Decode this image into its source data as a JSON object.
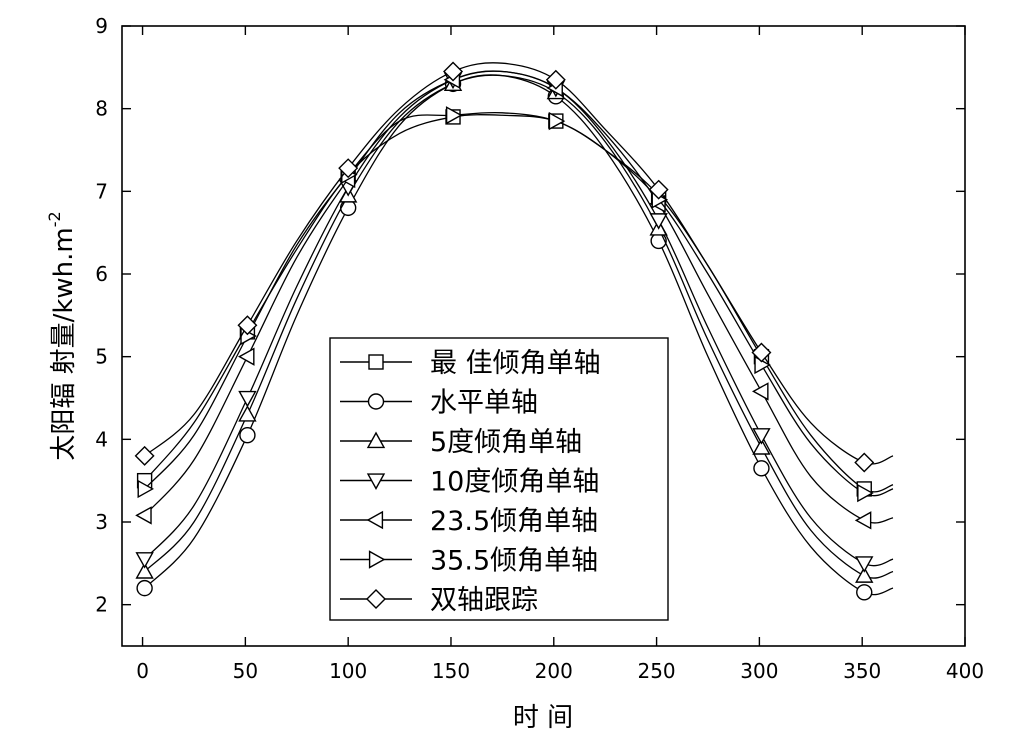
{
  "chart_data": {
    "type": "line",
    "xlabel": "时 间",
    "ylabel": "太阳辐 射量/kwh.m",
    "ylabel_sup": "-2",
    "xlim": [
      -10,
      400
    ],
    "ylim": [
      1.5,
      9
    ],
    "xticks": [
      0,
      50,
      100,
      150,
      200,
      250,
      300,
      350,
      400
    ],
    "yticks": [
      2,
      3,
      4,
      5,
      6,
      7,
      8,
      9
    ],
    "grid": false,
    "legend_position": "center-left",
    "series": [
      {
        "name": "最 佳倾角单轴",
        "marker": "square",
        "x": [
          1,
          25,
          51,
          75,
          100,
          125,
          151,
          175,
          201,
          225,
          251,
          275,
          301,
          325,
          351,
          365
        ],
        "y": [
          3.5,
          4.2,
          5.3,
          6.3,
          7.2,
          7.7,
          7.9,
          7.92,
          7.85,
          7.5,
          6.95,
          6.1,
          5.0,
          4.05,
          3.4,
          3.45
        ]
      },
      {
        "name": "水平单轴",
        "marker": "circle",
        "x": [
          1,
          25,
          51,
          75,
          100,
          125,
          151,
          175,
          201,
          225,
          251,
          275,
          301,
          325,
          351,
          365
        ],
        "y": [
          2.2,
          2.8,
          4.05,
          5.5,
          6.8,
          7.8,
          8.3,
          8.4,
          8.15,
          7.5,
          6.4,
          5.0,
          3.65,
          2.7,
          2.15,
          2.2
        ]
      },
      {
        "name": "5度倾角单轴",
        "marker": "triangle-up",
        "x": [
          1,
          25,
          51,
          75,
          100,
          125,
          151,
          175,
          201,
          225,
          251,
          275,
          301,
          325,
          351,
          365
        ],
        "y": [
          2.4,
          3.0,
          4.3,
          5.7,
          6.95,
          7.85,
          8.3,
          8.4,
          8.2,
          7.6,
          6.55,
          5.2,
          3.9,
          2.9,
          2.35,
          2.4
        ]
      },
      {
        "name": "10度倾角单轴",
        "marker": "triangle-down",
        "x": [
          1,
          25,
          51,
          75,
          100,
          125,
          151,
          175,
          201,
          225,
          251,
          275,
          301,
          325,
          351,
          365
        ],
        "y": [
          2.55,
          3.2,
          4.5,
          5.85,
          7.05,
          7.9,
          8.35,
          8.45,
          8.25,
          7.65,
          6.65,
          5.35,
          4.05,
          3.05,
          2.5,
          2.55
        ]
      },
      {
        "name": "23.5倾角单轴",
        "marker": "triangle-left",
        "x": [
          1,
          25,
          51,
          75,
          100,
          125,
          151,
          175,
          201,
          225,
          251,
          275,
          301,
          325,
          351,
          365
        ],
        "y": [
          3.08,
          3.75,
          5.0,
          6.2,
          7.15,
          7.95,
          8.35,
          8.45,
          8.25,
          7.7,
          6.85,
          5.75,
          4.58,
          3.55,
          3.02,
          3.05
        ]
      },
      {
        "name": "35.5倾角单轴",
        "marker": "triangle-right",
        "x": [
          1,
          25,
          51,
          75,
          100,
          125,
          151,
          175,
          201,
          225,
          251,
          275,
          301,
          325,
          351,
          365
        ],
        "y": [
          3.4,
          4.05,
          5.25,
          6.35,
          7.2,
          7.85,
          7.92,
          7.95,
          7.85,
          7.5,
          6.9,
          6.0,
          4.9,
          3.95,
          3.35,
          3.4
        ]
      },
      {
        "name": "双轴跟踪",
        "marker": "diamond",
        "x": [
          1,
          25,
          51,
          75,
          100,
          125,
          151,
          175,
          201,
          225,
          251,
          275,
          301,
          325,
          351,
          365
        ],
        "y": [
          3.8,
          4.3,
          5.38,
          6.4,
          7.28,
          8.0,
          8.45,
          8.55,
          8.35,
          7.75,
          7.02,
          6.1,
          5.05,
          4.2,
          3.72,
          3.8
        ]
      }
    ],
    "marker_x": [
      1,
      51,
      100,
      151,
      201,
      251,
      301,
      351
    ]
  }
}
